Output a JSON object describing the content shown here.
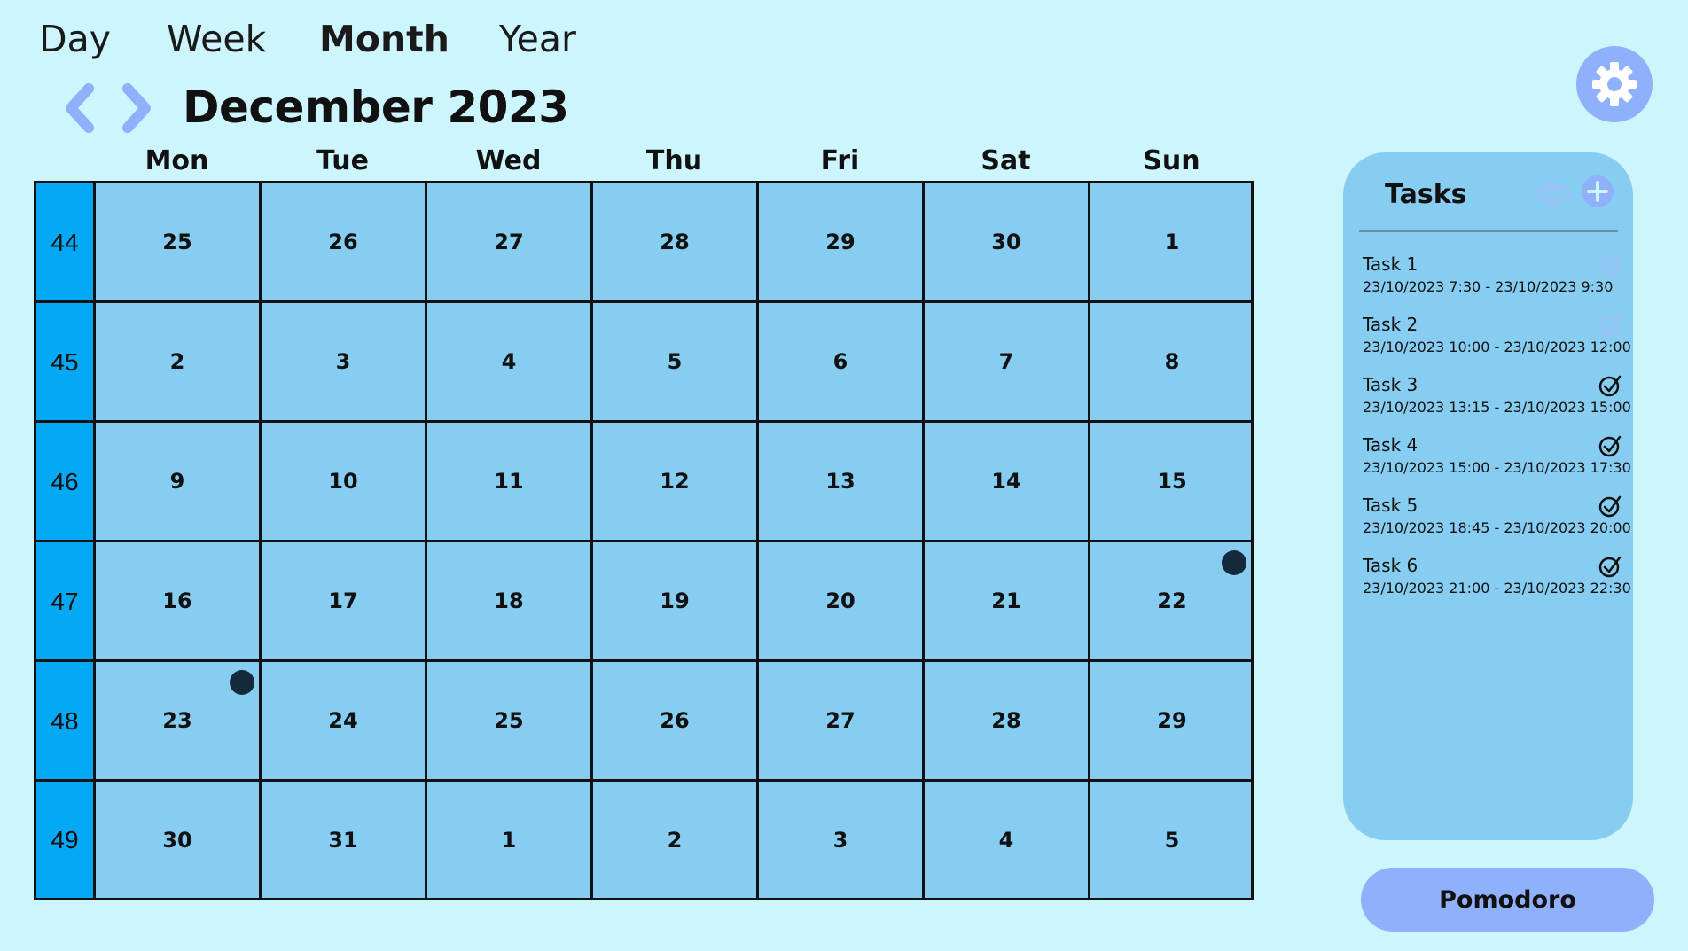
{
  "view_tabs": [
    {
      "label": "Day",
      "active": false
    },
    {
      "label": "Week",
      "active": false
    },
    {
      "label": "Month",
      "active": true
    },
    {
      "label": "Year",
      "active": false
    }
  ],
  "header": {
    "month_title": "December 2023",
    "prev_icon": "chevron-left-icon",
    "next_icon": "chevron-right-icon",
    "settings_icon": "gear-icon"
  },
  "calendar": {
    "day_headers": [
      "Mon",
      "Tue",
      "Wed",
      "Thu",
      "Fri",
      "Sat",
      "Sun"
    ],
    "weeks": [
      {
        "week": "44",
        "days": [
          "25",
          "26",
          "27",
          "28",
          "29",
          "30",
          "1"
        ]
      },
      {
        "week": "45",
        "days": [
          "2",
          "3",
          "4",
          "5",
          "6",
          "7",
          "8"
        ]
      },
      {
        "week": "46",
        "days": [
          "9",
          "10",
          "11",
          "12",
          "13",
          "14",
          "15"
        ]
      },
      {
        "week": "47",
        "days": [
          "16",
          "17",
          "18",
          "19",
          "20",
          "21",
          "22"
        ]
      },
      {
        "week": "48",
        "days": [
          "23",
          "24",
          "25",
          "26",
          "27",
          "28",
          "29"
        ]
      },
      {
        "week": "49",
        "days": [
          "30",
          "31",
          "1",
          "2",
          "3",
          "4",
          "5"
        ]
      }
    ],
    "event_markers": [
      {
        "week_index": 3,
        "day_index": 6
      },
      {
        "week_index": 4,
        "day_index": 0
      }
    ]
  },
  "tasks_panel": {
    "title": "Tasks",
    "view_icon": "eye-icon",
    "add_icon": "plus-circle-icon",
    "tasks": [
      {
        "name": "Task  1",
        "time": " 23/10/2023 7:30  - 23/10/2023 9:30",
        "completed": false
      },
      {
        "name": "Task  2",
        "time": "23/10/2023 10:00  - 23/10/2023 12:00",
        "completed": false
      },
      {
        "name": "Task  3",
        "time": "23/10/2023 13:15  - 23/10/2023 15:00",
        "completed": true
      },
      {
        "name": "Task  4",
        "time": "23/10/2023 15:00  - 23/10/2023 17:30",
        "completed": true
      },
      {
        "name": "Task  5",
        "time": "23/10/2023 18:45  - 23/10/2023 20:00",
        "completed": true
      },
      {
        "name": "Task  6",
        "time": "23/10/2023 21:00  - 23/10/2023 22:30",
        "completed": true
      }
    ]
  },
  "pomodoro_label": "Pomodoro",
  "colors": {
    "background": "#cdf5fd",
    "cell": "#87cdf2",
    "week_column": "#03a9f4",
    "accent": "#8fb0fb",
    "marker": "#14293a"
  }
}
